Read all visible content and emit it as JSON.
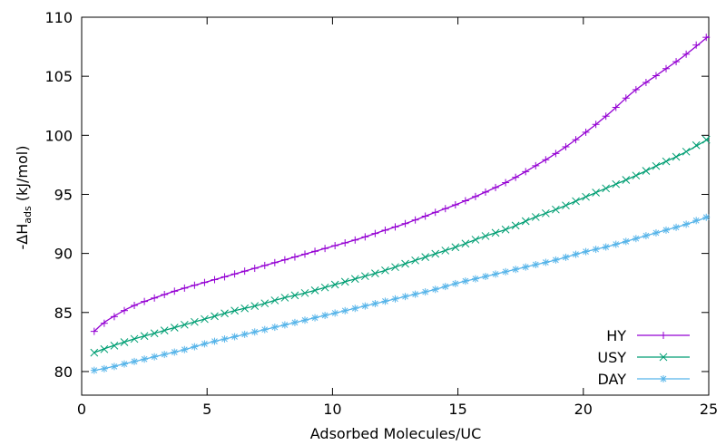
{
  "chart_data": {
    "type": "line",
    "xlabel": "Adsorbed Molecules/UC",
    "ylabel": {
      "prefix": "-ΔH",
      "subscript": "ads",
      "suffix": " (kJ/mol)"
    },
    "xlim": [
      0,
      25
    ],
    "ylim": [
      78,
      110
    ],
    "xticks": [
      "0",
      "5",
      "10",
      "15",
      "20",
      "25"
    ],
    "yticks": [
      "80",
      "85",
      "90",
      "95",
      "100",
      "105",
      "110"
    ],
    "grid": false,
    "legend_position": "bottom-right",
    "series": [
      {
        "name": "HY",
        "color": "#9400d3",
        "marker": "plus",
        "x": [
          0.5,
          1,
          2,
          3,
          4,
          5,
          6,
          7,
          8,
          9,
          10,
          11,
          12,
          13,
          14,
          15,
          16,
          17,
          18,
          19,
          20,
          21,
          22,
          23,
          24,
          25
        ],
        "y": [
          83.4,
          84.3,
          85.5,
          86.3,
          87.0,
          87.6,
          88.2,
          88.8,
          89.4,
          90.0,
          90.6,
          91.2,
          91.9,
          92.6,
          93.4,
          94.2,
          95.1,
          96.1,
          97.3,
          98.6,
          100.1,
          101.8,
          103.7,
          105.2,
          106.7,
          108.4
        ]
      },
      {
        "name": "USY",
        "color": "#009e73",
        "marker": "cross",
        "x": [
          0.5,
          1,
          2,
          3,
          4,
          5,
          6,
          7,
          8,
          9,
          10,
          11,
          12,
          13,
          14,
          15,
          16,
          17,
          18,
          19,
          20,
          21,
          22,
          23,
          24,
          25
        ],
        "y": [
          81.6,
          82.0,
          82.7,
          83.3,
          83.9,
          84.5,
          85.1,
          85.6,
          86.2,
          86.7,
          87.3,
          87.9,
          88.5,
          89.2,
          89.9,
          90.6,
          91.4,
          92.1,
          93.0,
          93.8,
          94.7,
          95.6,
          96.5,
          97.5,
          98.5,
          99.7
        ]
      },
      {
        "name": "DAY",
        "color": "#56b4e9",
        "marker": "star",
        "x": [
          0.5,
          1,
          2,
          3,
          4,
          5,
          6,
          7,
          8,
          9,
          10,
          11,
          12,
          13,
          14,
          15,
          16,
          17,
          18,
          19,
          20,
          21,
          22,
          23,
          24,
          25
        ],
        "y": [
          80.1,
          80.3,
          80.8,
          81.3,
          81.8,
          82.4,
          82.9,
          83.4,
          83.9,
          84.4,
          84.9,
          85.4,
          85.9,
          86.4,
          86.9,
          87.5,
          88.0,
          88.5,
          89.0,
          89.5,
          90.1,
          90.6,
          91.2,
          91.8,
          92.4,
          93.1
        ]
      }
    ]
  }
}
